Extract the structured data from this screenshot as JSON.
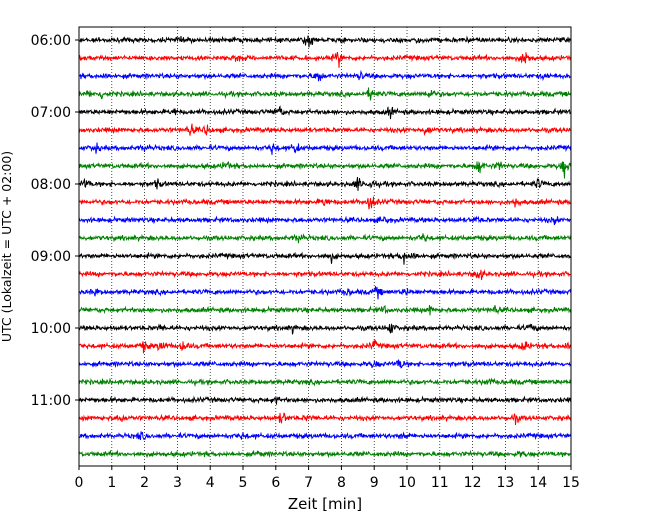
{
  "chart_data": {
    "type": "line",
    "title": "",
    "xlabel": "Zeit  [min]",
    "ylabel": "UTC (Lokalzeit = UTC + 02:00)",
    "xlim": [
      0,
      15
    ],
    "xticks": [
      "0",
      "1",
      "2",
      "3",
      "4",
      "5",
      "6",
      "7",
      "8",
      "9",
      "10",
      "11",
      "12",
      "13",
      "14",
      "15"
    ],
    "yticks": [
      "06:00",
      "07:00",
      "08:00",
      "09:00",
      "10:00",
      "11:00"
    ],
    "grid": "vertical dotted",
    "trace_minutes": 15,
    "traces_per_hour": 4,
    "first_trace": "06:00",
    "colors": [
      "#000000",
      "#ff0000",
      "#0000ff",
      "#008000"
    ],
    "series": [
      {
        "start": "06:00",
        "events": [
          [
            3.1,
            0.3
          ],
          [
            7.0,
            1.0
          ],
          [
            10.3,
            0.3
          ]
        ]
      },
      {
        "start": "06:15",
        "events": [
          [
            4.8,
            0.5
          ],
          [
            7.9,
            0.8
          ],
          [
            13.6,
            0.9
          ]
        ]
      },
      {
        "start": "06:30",
        "events": [
          [
            0.8,
            0.3
          ],
          [
            7.3,
            0.8
          ],
          [
            8.6,
            0.4
          ],
          [
            14.2,
            0.3
          ]
        ]
      },
      {
        "start": "06:45",
        "events": [
          [
            0.3,
            0.3
          ],
          [
            0.7,
            0.5
          ],
          [
            8.9,
            0.7
          ],
          [
            10.7,
            0.7
          ]
        ]
      },
      {
        "start": "07:00",
        "events": [
          [
            2.9,
            0.3
          ],
          [
            6.1,
            0.7
          ],
          [
            9.5,
            0.5
          ]
        ]
      },
      {
        "start": "07:15",
        "events": [
          [
            3.4,
            0.6
          ],
          [
            3.9,
            0.6
          ],
          [
            10.6,
            0.6
          ]
        ]
      },
      {
        "start": "07:30",
        "events": [
          [
            0.5,
            0.5
          ],
          [
            2.0,
            0.3
          ],
          [
            5.9,
            0.6
          ],
          [
            6.6,
            0.6
          ]
        ]
      },
      {
        "start": "07:45",
        "events": [
          [
            4.5,
            0.5
          ],
          [
            12.2,
            0.9
          ],
          [
            12.8,
            0.4
          ],
          [
            14.8,
            0.9
          ]
        ]
      },
      {
        "start": "08:00",
        "events": [
          [
            0.2,
            0.5
          ],
          [
            2.4,
            0.4
          ],
          [
            8.5,
            0.6
          ],
          [
            8.9,
            0.5
          ],
          [
            14.0,
            0.5
          ]
        ]
      },
      {
        "start": "08:15",
        "events": [
          [
            7.5,
            0.5
          ],
          [
            8.9,
            1.0
          ],
          [
            13.3,
            0.5
          ]
        ]
      },
      {
        "start": "08:30",
        "events": [
          [
            9.3,
            0.4
          ],
          [
            12.1,
            0.3
          ],
          [
            14.5,
            0.3
          ]
        ]
      },
      {
        "start": "08:45",
        "events": [
          [
            6.7,
            0.5
          ],
          [
            10.5,
            0.5
          ]
        ]
      },
      {
        "start": "09:00",
        "events": [
          [
            7.7,
            0.4
          ],
          [
            9.9,
            0.6
          ],
          [
            10.2,
            0.4
          ]
        ]
      },
      {
        "start": "09:15",
        "events": [
          [
            12.2,
            0.7
          ]
        ]
      },
      {
        "start": "09:30",
        "events": [
          [
            0.5,
            0.3
          ],
          [
            8.2,
            0.3
          ],
          [
            9.1,
            0.5
          ],
          [
            10.0,
            0.3
          ]
        ]
      },
      {
        "start": "09:45",
        "events": [
          [
            9.3,
            0.3
          ],
          [
            10.7,
            0.4
          ],
          [
            12.7,
            0.4
          ]
        ]
      },
      {
        "start": "10:00",
        "events": [
          [
            2.5,
            0.3
          ],
          [
            6.5,
            0.3
          ],
          [
            9.5,
            0.6
          ],
          [
            13.8,
            0.4
          ]
        ]
      },
      {
        "start": "10:15",
        "events": [
          [
            2.0,
            0.6
          ],
          [
            2.5,
            0.6
          ],
          [
            3.2,
            0.6
          ],
          [
            9.0,
            0.5
          ],
          [
            13.6,
            0.5
          ],
          [
            14.9,
            0.5
          ]
        ]
      },
      {
        "start": "10:30",
        "events": [
          [
            9.0,
            0.4
          ],
          [
            9.8,
            0.6
          ]
        ]
      },
      {
        "start": "10:45",
        "events": [
          [
            12.5,
            0.3
          ]
        ]
      },
      {
        "start": "11:00",
        "events": [
          [
            6.0,
            0.3
          ]
        ]
      },
      {
        "start": "11:15",
        "events": [
          [
            1.3,
            0.4
          ],
          [
            6.2,
            0.7
          ],
          [
            7.0,
            0.3
          ],
          [
            13.3,
            0.4
          ]
        ]
      },
      {
        "start": "11:30",
        "events": [
          [
            1.9,
            0.4
          ],
          [
            5.0,
            0.3
          ],
          [
            9.9,
            0.3
          ]
        ]
      },
      {
        "start": "11:45",
        "events": [
          [
            5.5,
            0.3
          ],
          [
            13.5,
            0.3
          ]
        ]
      }
    ]
  }
}
